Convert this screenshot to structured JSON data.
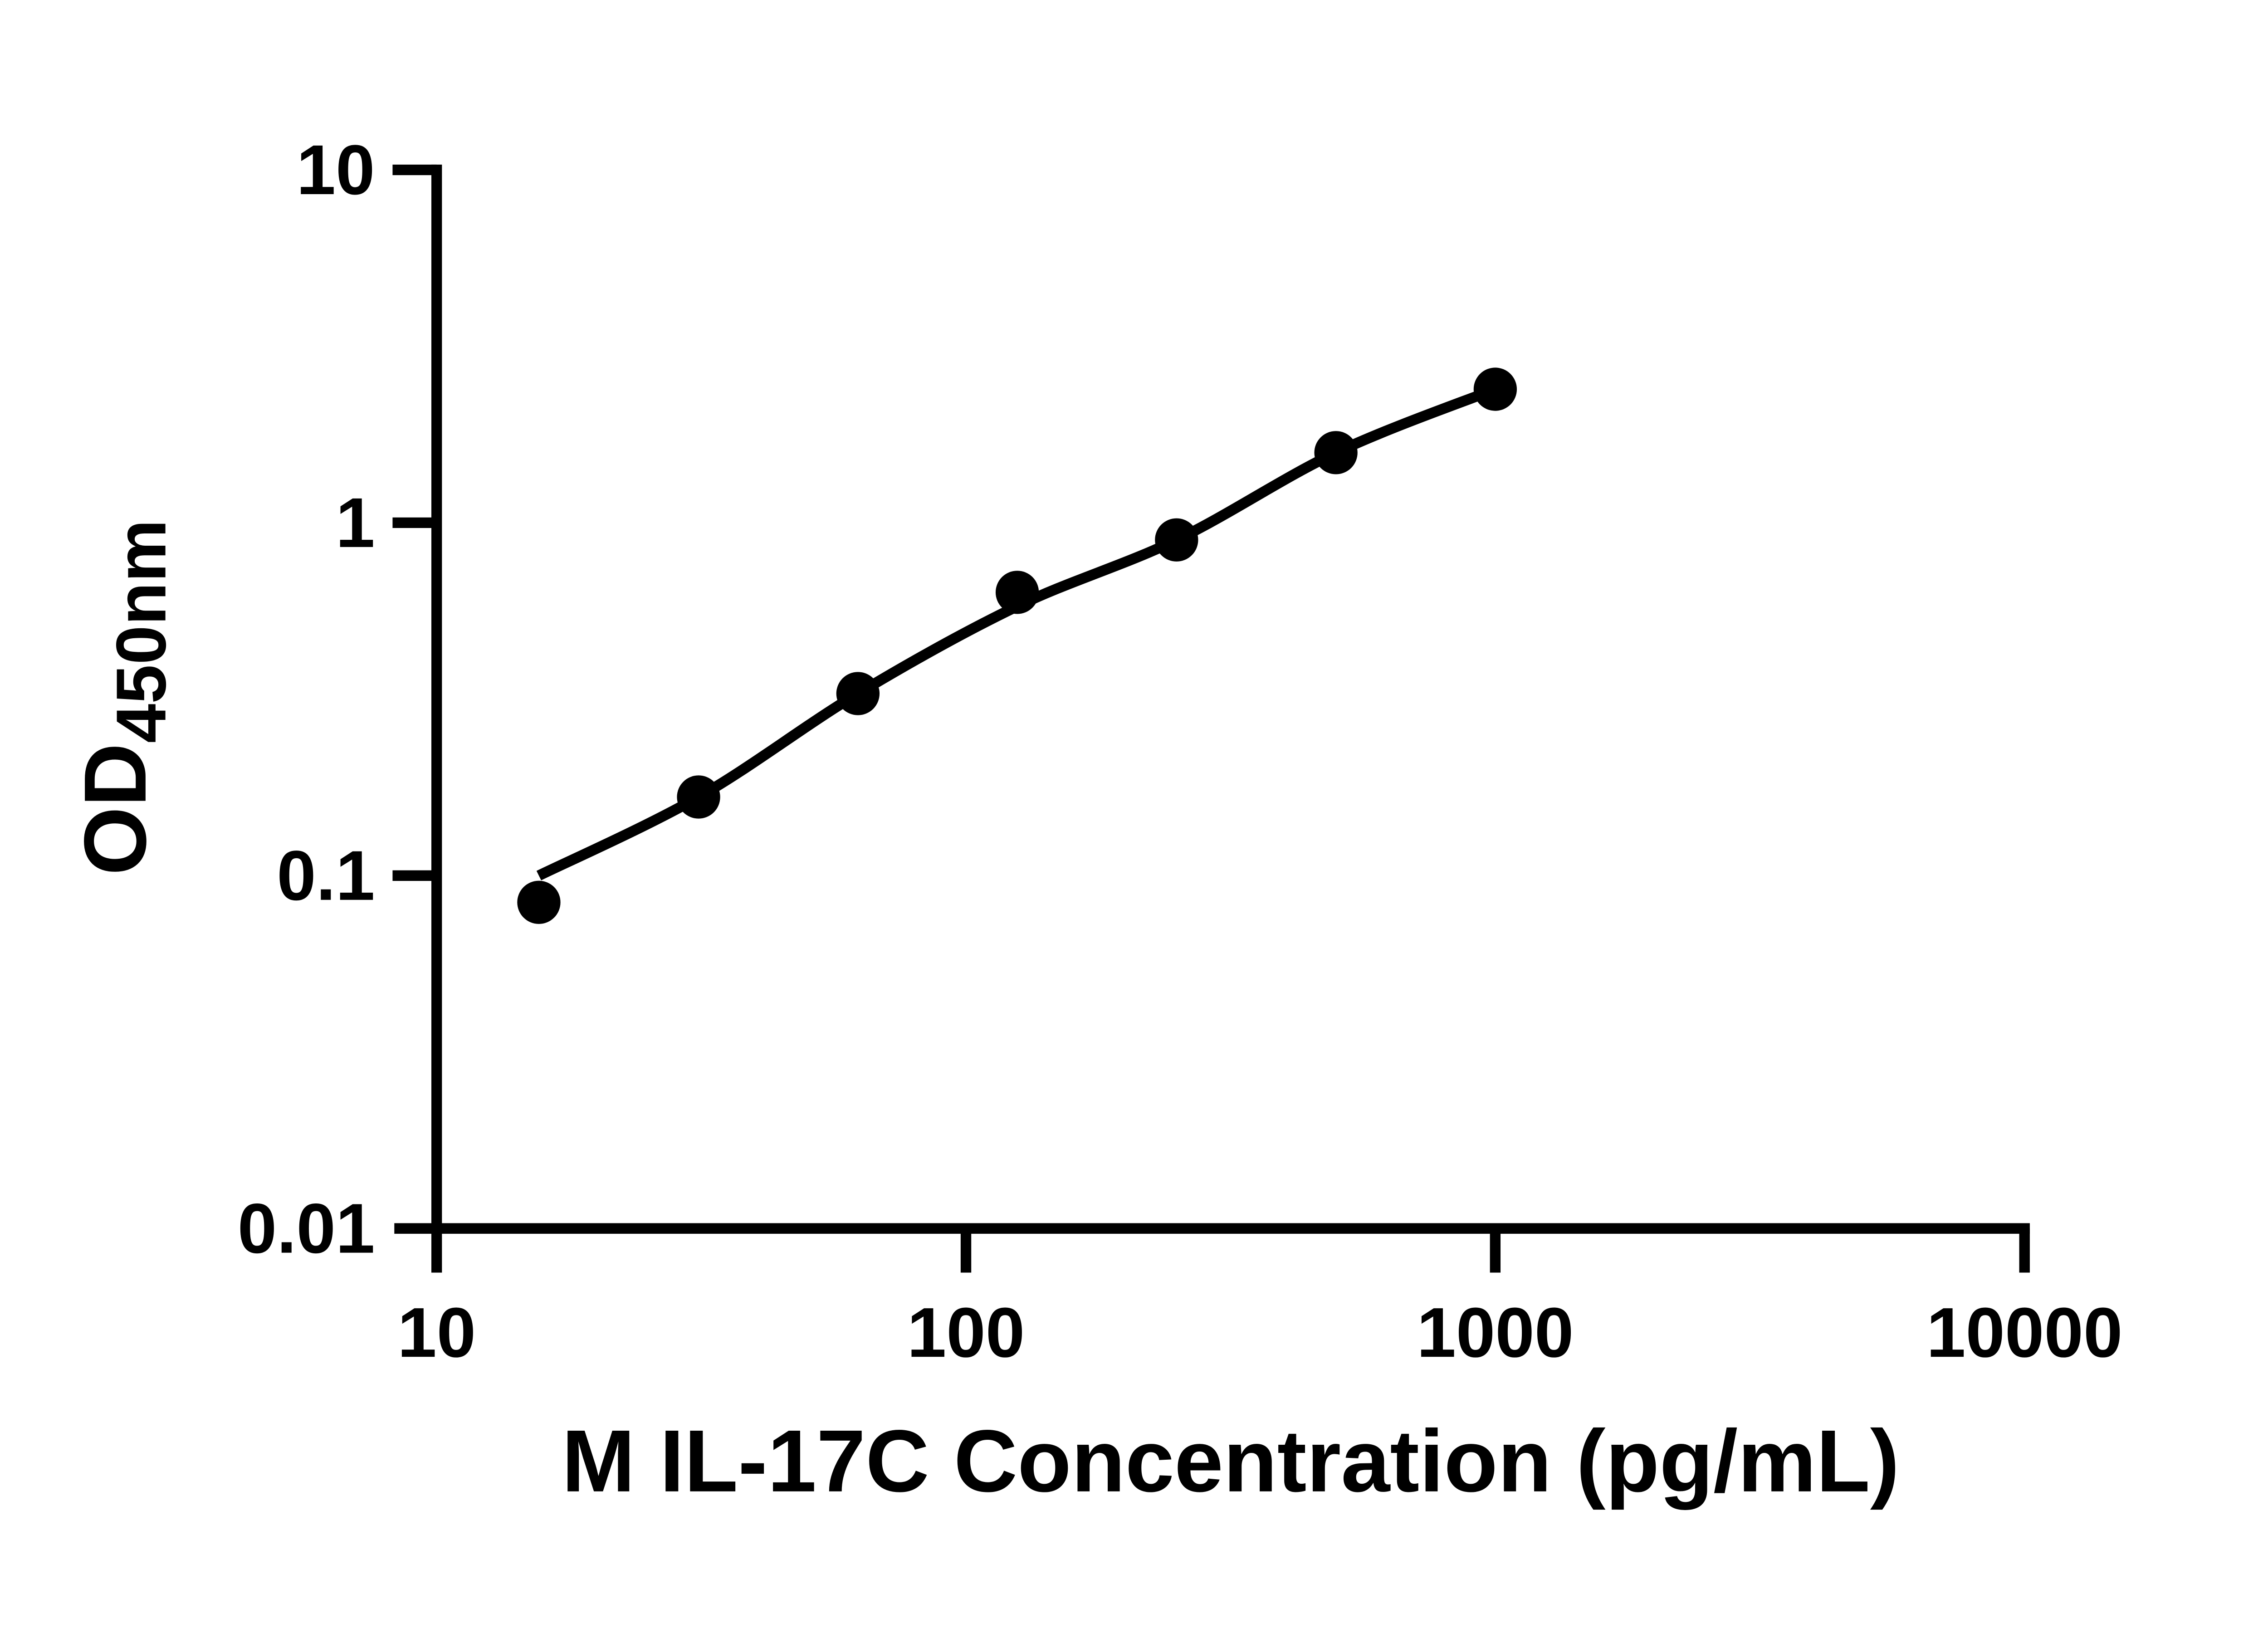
{
  "chart_data": {
    "type": "scatter",
    "title": "",
    "xlabel": "M IL-17C Concentration (pg/mL)",
    "ylabel_base": "OD",
    "ylabel_sub": "450nm",
    "x_scale": "log",
    "y_scale": "log",
    "xlim": [
      10,
      10000
    ],
    "ylim": [
      0.01,
      10
    ],
    "grid": false,
    "legend": false,
    "x_ticks": [
      {
        "value": 10,
        "label": "10"
      },
      {
        "value": 100,
        "label": "100"
      },
      {
        "value": 1000,
        "label": "1000"
      },
      {
        "value": 10000,
        "label": "10000"
      }
    ],
    "y_ticks": [
      {
        "value": 10,
        "label": "10"
      },
      {
        "value": 1,
        "label": "1"
      },
      {
        "value": 0.1,
        "label": "0.1"
      },
      {
        "value": 0.01,
        "label": "0.01"
      }
    ],
    "series": [
      {
        "name": "standard-points",
        "type": "scatter",
        "marker": "filled-circle",
        "points": [
          {
            "x": 15.6,
            "y": 0.084
          },
          {
            "x": 31.25,
            "y": 0.167
          },
          {
            "x": 62.5,
            "y": 0.328
          },
          {
            "x": 125,
            "y": 0.635
          },
          {
            "x": 250,
            "y": 0.894
          },
          {
            "x": 500,
            "y": 1.58
          },
          {
            "x": 1000,
            "y": 2.39
          }
        ]
      },
      {
        "name": "fit-curve",
        "type": "line",
        "points": [
          {
            "x": 15.6,
            "y": 0.1
          },
          {
            "x": 31.25,
            "y": 0.167
          },
          {
            "x": 62.5,
            "y": 0.328
          },
          {
            "x": 125,
            "y": 0.58
          },
          {
            "x": 250,
            "y": 0.894
          },
          {
            "x": 500,
            "y": 1.58
          },
          {
            "x": 1000,
            "y": 2.39
          }
        ]
      }
    ]
  },
  "colors": {
    "foreground": "#000000",
    "background": "#ffffff"
  }
}
